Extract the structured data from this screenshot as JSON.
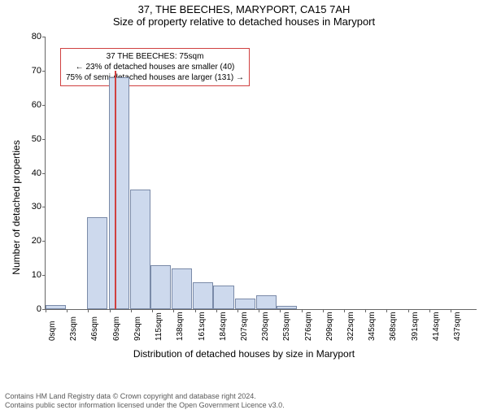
{
  "title": "37, THE BEECHES, MARYPORT, CA15 7AH",
  "subtitle": "Size of property relative to detached houses in Maryport",
  "ylabel": "Number of detached properties",
  "xlabel": "Distribution of detached houses by size in Maryport",
  "chart": {
    "type": "histogram",
    "ylim": [
      0,
      80
    ],
    "ytick_step": 10,
    "xtick_step": 23,
    "xlim": [
      0,
      465
    ],
    "xtick_suffix": "sqm",
    "bar_fill": "#cdd9ed",
    "bar_stroke": "#7a8aa8",
    "bin_width": 23,
    "bins": [
      {
        "start": 0,
        "count": 1.2
      },
      {
        "start": 45,
        "count": 27
      },
      {
        "start": 68,
        "count": 68
      },
      {
        "start": 91,
        "count": 35
      },
      {
        "start": 113,
        "count": 13
      },
      {
        "start": 136,
        "count": 12
      },
      {
        "start": 159,
        "count": 8
      },
      {
        "start": 181,
        "count": 7
      },
      {
        "start": 204,
        "count": 3
      },
      {
        "start": 227,
        "count": 4
      },
      {
        "start": 249,
        "count": 1
      }
    ],
    "marker": {
      "value": 75,
      "color": "#d04040",
      "height_to": 70
    },
    "annotation": {
      "border_color": "#d04040",
      "lines": [
        "37 THE BEECHES: 75sqm",
        "← 23% of detached houses are smaller (40)",
        "75% of semi-detached houses are larger (131) →"
      ]
    }
  },
  "footnote_lines": [
    "Contains HM Land Registry data © Crown copyright and database right 2024.",
    "Contains public sector information licensed under the Open Government Licence v3.0."
  ]
}
